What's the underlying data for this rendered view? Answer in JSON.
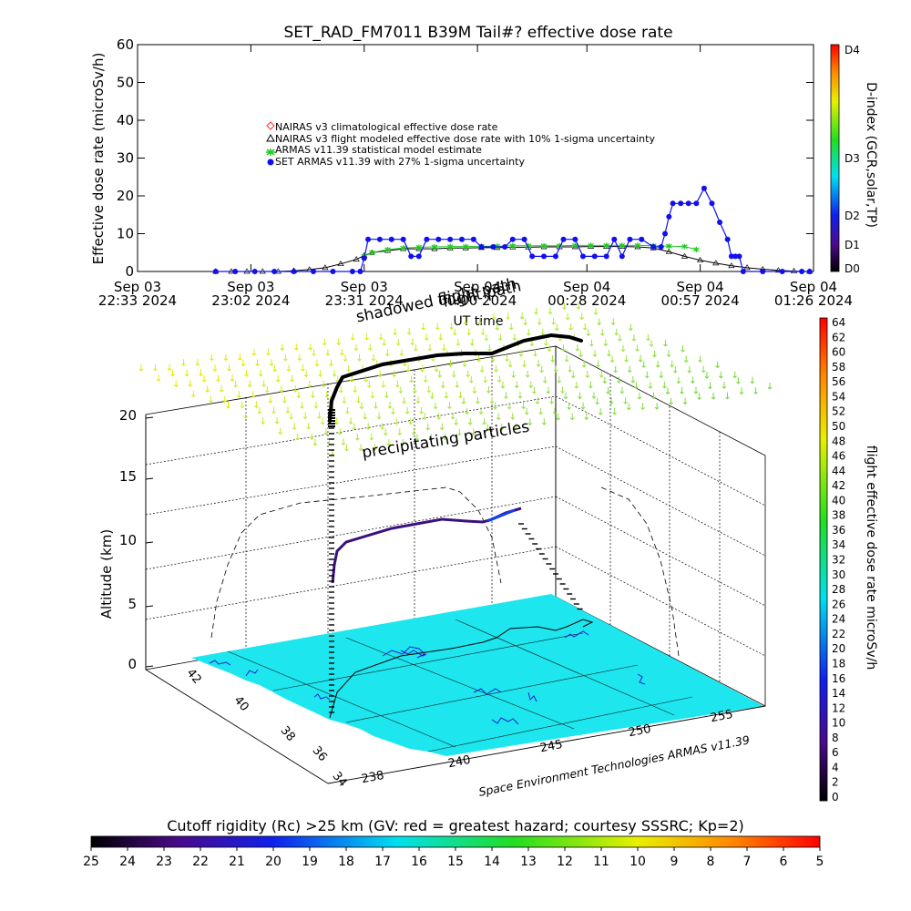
{
  "chart_data": [
    {
      "type": "line",
      "title": "SET_RAD_FM7011  B39M Tail#? effective dose rate",
      "xlabel": "UT time",
      "ylabel": "Effective dose rate (microSv/h)",
      "ylim": [
        0,
        60
      ],
      "yticks": [
        0,
        10,
        20,
        30,
        40,
        50,
        60
      ],
      "x_ticks": [
        {
          "line1": "Sep 03",
          "line2": "22:33 2024",
          "t": 0
        },
        {
          "line1": "Sep 03",
          "line2": "23:02 2024",
          "t": 29
        },
        {
          "line1": "Sep 03",
          "line2": "23:31 2024",
          "t": 58
        },
        {
          "line1": "Sep 04",
          "line2": "00:00 2024",
          "t": 87
        },
        {
          "line1": "Sep 04",
          "line2": "00:28 2024",
          "t": 115
        },
        {
          "line1": "Sep 04",
          "line2": "00:57 2024",
          "t": 144
        },
        {
          "line1": "Sep 04",
          "line2": "01:26 2024",
          "t": 173
        }
      ],
      "xlim_minutes_after_first_tick": [
        0,
        173
      ],
      "legend_position": "top-center",
      "series": [
        {
          "name": "NAIRAS v3 climatological effective dose rate",
          "marker": "diamond",
          "color": "#ff3030",
          "points": []
        },
        {
          "name": "NAIRAS v3 flight modeled effective dose rate with 10% 1-sigma uncertainty",
          "marker": "triangle",
          "color": "#000000",
          "points": [
            [
              20,
              0
            ],
            [
              24,
              0
            ],
            [
              28,
              0
            ],
            [
              32,
              0
            ],
            [
              36,
              0
            ],
            [
              40,
              0.2
            ],
            [
              44,
              0.5
            ],
            [
              48,
              1
            ],
            [
              52,
              2
            ],
            [
              56,
              3.2
            ],
            [
              58,
              4.2
            ],
            [
              60,
              5
            ],
            [
              64,
              5.5
            ],
            [
              68,
              6
            ],
            [
              72,
              6
            ],
            [
              76,
              6
            ],
            [
              80,
              6.2
            ],
            [
              84,
              6.2
            ],
            [
              88,
              6.3
            ],
            [
              92,
              6.3
            ],
            [
              96,
              6.4
            ],
            [
              100,
              6.4
            ],
            [
              104,
              6.5
            ],
            [
              108,
              6.5
            ],
            [
              112,
              6.5
            ],
            [
              116,
              6.6
            ],
            [
              120,
              6.6
            ],
            [
              124,
              6.6
            ],
            [
              128,
              6.5
            ],
            [
              132,
              6.2
            ],
            [
              136,
              5.2
            ],
            [
              140,
              4
            ],
            [
              144,
              3
            ],
            [
              148,
              2.2
            ],
            [
              152,
              1.5
            ],
            [
              156,
              1
            ],
            [
              160,
              0.6
            ],
            [
              164,
              0.3
            ],
            [
              168,
              0.1
            ],
            [
              172,
              0
            ]
          ]
        },
        {
          "name": "ARMAS v11.39 statistical model estimate",
          "marker": "asterisk",
          "color": "#22cc22",
          "points": [
            [
              58,
              4
            ],
            [
              60,
              5
            ],
            [
              64,
              5.8
            ],
            [
              68,
              6.2
            ],
            [
              72,
              6.4
            ],
            [
              76,
              6.5
            ],
            [
              80,
              6.6
            ],
            [
              84,
              6.6
            ],
            [
              88,
              6.7
            ],
            [
              92,
              6.7
            ],
            [
              96,
              6.8
            ],
            [
              100,
              6.8
            ],
            [
              104,
              6.8
            ],
            [
              108,
              6.8
            ],
            [
              112,
              6.9
            ],
            [
              116,
              6.9
            ],
            [
              120,
              6.9
            ],
            [
              124,
              6.9
            ],
            [
              128,
              6.9
            ],
            [
              132,
              6.8
            ],
            [
              136,
              6.7
            ],
            [
              140,
              6.6
            ],
            [
              143,
              5.8
            ]
          ]
        },
        {
          "name": "SET ARMAS v11.39 with 27% 1-sigma uncertainty",
          "marker": "circle",
          "color": "#1010ee",
          "points": [
            [
              20,
              0
            ],
            [
              25,
              0
            ],
            [
              30,
              0
            ],
            [
              35,
              0
            ],
            [
              40,
              0
            ],
            [
              45,
              0
            ],
            [
              50,
              0
            ],
            [
              55,
              0
            ],
            [
              57,
              0
            ],
            [
              58,
              3.5
            ],
            [
              59,
              8.5
            ],
            [
              62,
              8.5
            ],
            [
              65,
              8.5
            ],
            [
              68,
              8.5
            ],
            [
              70,
              4
            ],
            [
              72,
              4
            ],
            [
              74,
              8.5
            ],
            [
              77,
              8.5
            ],
            [
              80,
              8.5
            ],
            [
              83,
              8.5
            ],
            [
              86,
              8.5
            ],
            [
              88,
              6.5
            ],
            [
              91,
              6.5
            ],
            [
              94,
              6.5
            ],
            [
              96,
              8.5
            ],
            [
              99,
              8.5
            ],
            [
              101,
              4
            ],
            [
              104,
              4
            ],
            [
              107,
              4
            ],
            [
              109,
              8.5
            ],
            [
              112,
              8.5
            ],
            [
              114,
              4
            ],
            [
              117,
              4
            ],
            [
              120,
              4
            ],
            [
              122,
              8.5
            ],
            [
              124,
              4
            ],
            [
              126,
              8.5
            ],
            [
              129,
              8.5
            ],
            [
              132,
              6.5
            ],
            [
              134,
              6.5
            ],
            [
              135,
              10
            ],
            [
              136,
              14.5
            ],
            [
              137,
              18
            ],
            [
              139,
              18
            ],
            [
              141,
              18
            ],
            [
              143,
              18
            ],
            [
              145,
              22
            ],
            [
              147,
              18
            ],
            [
              149,
              13
            ],
            [
              151,
              8.5
            ],
            [
              152,
              4
            ],
            [
              153,
              4
            ],
            [
              154,
              4
            ],
            [
              155,
              0
            ],
            [
              160,
              0
            ],
            [
              165,
              0
            ],
            [
              170,
              0
            ],
            [
              172,
              0
            ]
          ]
        }
      ],
      "dindex_scale": {
        "title": "D-index (GCR,solar,TP)",
        "labels": [
          "D0",
          "D1",
          "D2",
          "D3",
          "D4"
        ]
      }
    },
    {
      "type": "scatter",
      "title": "flight path",
      "ylabel": "Altitude (km)",
      "zticks": [
        0,
        5,
        10,
        15,
        20
      ],
      "lat_ticks": [
        34,
        36,
        38,
        40,
        42
      ],
      "lon_ticks": [
        238,
        240,
        245,
        250,
        255
      ],
      "annotations": [
        "precipitating particles",
        "shadowed flight path"
      ],
      "credit": "Space Environment Technologies ARMAS v11.39",
      "right_colorbar": {
        "title": "flight effective dose rate microSv/h",
        "min": 0,
        "max": 64,
        "step": 2
      },
      "bottom_colorbar": {
        "title": "Cutoff rigidity (Rc) >25 km (GV: red = greatest hazard; courtesy SSSRC; Kp=2)",
        "labels": [
          25,
          24,
          23,
          22,
          21,
          20,
          19,
          18,
          17,
          16,
          15,
          14,
          13,
          12,
          11,
          10,
          9,
          8,
          7,
          6,
          5
        ]
      }
    }
  ]
}
